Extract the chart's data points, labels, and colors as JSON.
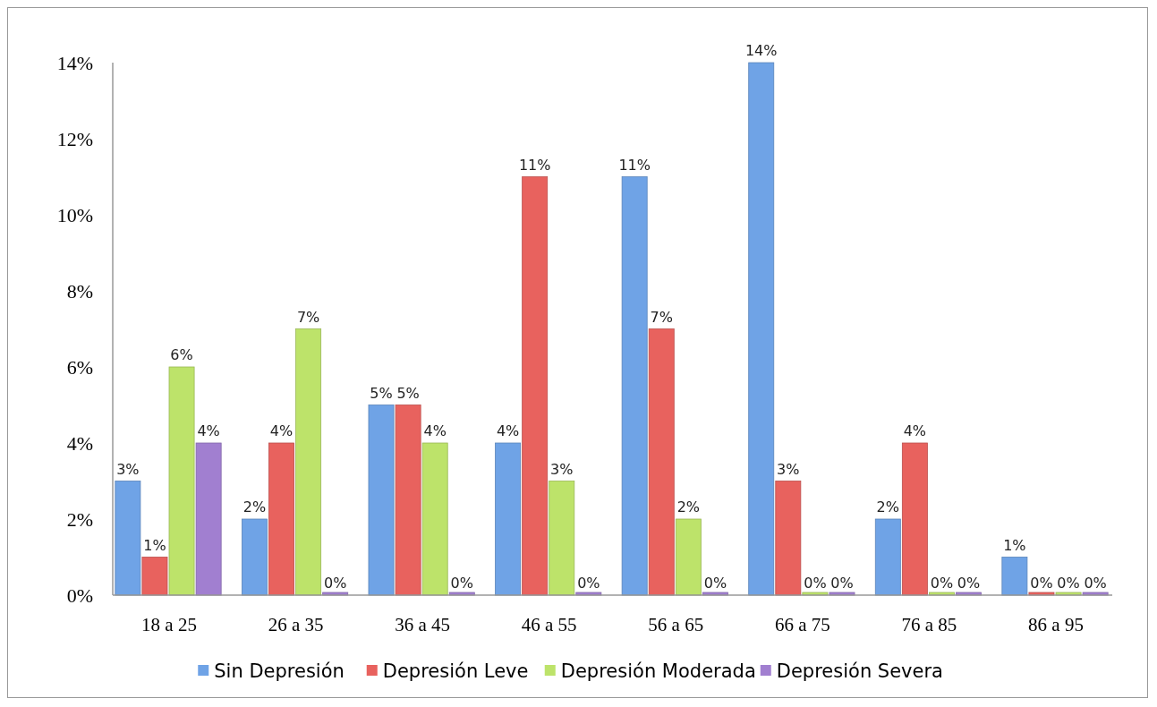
{
  "chart_data": {
    "type": "bar",
    "categories": [
      "18 a 25",
      "26 a 35",
      "36 a 45",
      "46 a 55",
      "56 a 65",
      "66 a 75",
      "76 a 85",
      "86 a 95"
    ],
    "ylim": [
      0,
      14
    ],
    "yticks": [
      {
        "value": 0,
        "label": "0%"
      },
      {
        "value": 2,
        "label": "2%"
      },
      {
        "value": 4,
        "label": "4%"
      },
      {
        "value": 6,
        "label": "6%"
      },
      {
        "value": 8,
        "label": "8%"
      },
      {
        "value": 10,
        "label": "10%"
      },
      {
        "value": 12,
        "label": "12%"
      },
      {
        "value": 14,
        "label": "14%"
      }
    ],
    "grid": false,
    "legend": "bottom",
    "series": [
      {
        "name": "Sin Depresión",
        "color": "#6fa3e6",
        "values": [
          3,
          2,
          5,
          4,
          11,
          14,
          2,
          1
        ],
        "value_labels": [
          "3%",
          "2%",
          "5%",
          "4%",
          "11%",
          "14%",
          "2%",
          "1%"
        ]
      },
      {
        "name": "Depresión Leve",
        "color": "#e8625e",
        "values": [
          1,
          4,
          5,
          11,
          7,
          3,
          4,
          0
        ],
        "value_labels": [
          "1%",
          "4%",
          "5%",
          "11%",
          "7%",
          "3%",
          "4%",
          "0%"
        ]
      },
      {
        "name": "Depresión Moderada",
        "color": "#bde36a",
        "values": [
          6,
          7,
          4,
          3,
          2,
          0,
          0,
          0
        ],
        "value_labels": [
          "6%",
          "7%",
          "4%",
          "3%",
          "2%",
          "0%",
          "0%",
          "0%"
        ]
      },
      {
        "name": "Depresión Severa",
        "color": "#a17fd0",
        "values": [
          4,
          0,
          0,
          0,
          0,
          0,
          0,
          0
        ],
        "value_labels": [
          "4%",
          "0%",
          "0%",
          "0%",
          "0%",
          "0%",
          "0%",
          "0%"
        ]
      }
    ]
  }
}
